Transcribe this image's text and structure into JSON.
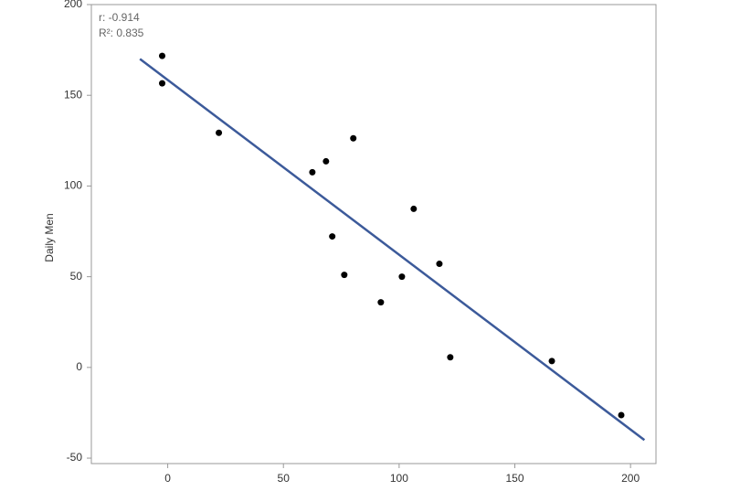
{
  "chart_data": {
    "type": "scatter",
    "y_label": "Daily Men",
    "annotations": [
      "r: -0.914",
      "R²: 0.835"
    ],
    "xlim": [
      -33,
      211
    ],
    "ylim": [
      -53,
      200
    ],
    "xticks": [
      0,
      50,
      100,
      150,
      200
    ],
    "yticks": [
      -50,
      0,
      50,
      100,
      150,
      200
    ],
    "series": [
      {
        "color": "#000000",
        "x": [
          -2.4,
          -2.4,
          22.1,
          62.5,
          68.4,
          80.2,
          71.1,
          76.3,
          92.1,
          101.2,
          106.3,
          117.4,
          122.1,
          166,
          196
        ],
        "values": [
          171.7,
          156.6,
          129.3,
          107.6,
          113.6,
          126.3,
          72.2,
          51,
          35.9,
          50,
          87.4,
          57.1,
          5.6,
          3.5,
          -26.3
        ]
      }
    ],
    "fit_line": {
      "color": "#3c5a9a",
      "x": [
        -12,
        206
      ],
      "values": [
        170,
        -40
      ]
    }
  }
}
